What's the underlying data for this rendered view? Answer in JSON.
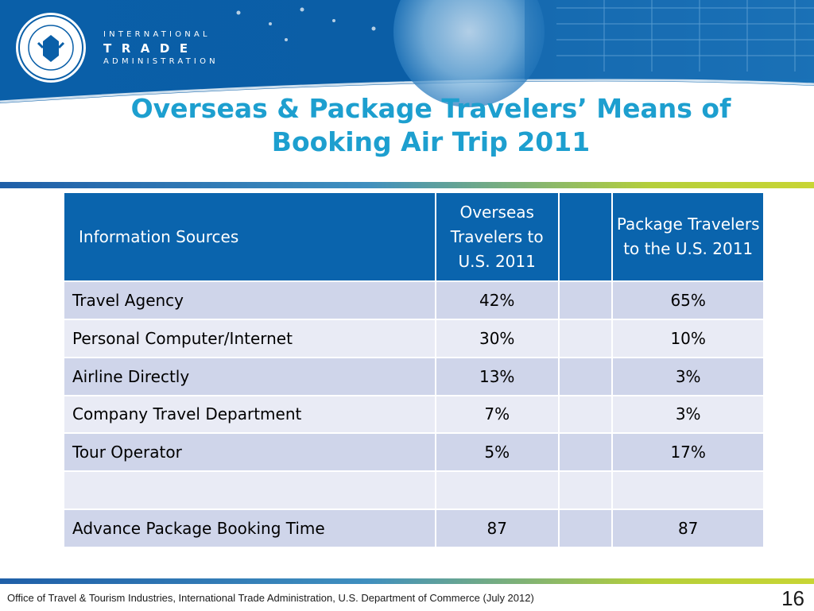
{
  "header": {
    "org_line1": "INTERNATIONAL",
    "org_line2": "TRADE",
    "org_line3": "ADMINISTRATION",
    "seal_icon": "department-of-commerce-seal-icon",
    "colors": {
      "banner_blue": "#0a5fa8",
      "title": "#1d9fcf"
    }
  },
  "slide": {
    "title_line1": "Overseas & Package Travelers’ Means of",
    "title_line2": "Booking Air Trip 2011"
  },
  "table": {
    "headers": [
      "Information  Sources",
      "Overseas Travelers to U.S. 2011",
      "",
      "Package Travelers to the U.S. 2011"
    ],
    "rows": [
      [
        "Travel Agency",
        "42%",
        "",
        "65%"
      ],
      [
        "Personal Computer/Internet",
        "30%",
        "",
        "10%"
      ],
      [
        "Airline Directly",
        "13%",
        "",
        "3%"
      ],
      [
        "Company Travel Department",
        "7%",
        "",
        "3%"
      ],
      [
        "Tour Operator",
        "5%",
        "",
        "17%"
      ],
      [
        "",
        "",
        "",
        ""
      ],
      [
        "Advance Package Booking Time",
        "87",
        "",
        "87"
      ]
    ],
    "colors": {
      "header_bg": "#0a64ad",
      "row_odd": "#cfd5ea",
      "row_even": "#e9ebf5"
    }
  },
  "footer": {
    "source": "Office of Travel & Tourism Industries, International Trade Administration, U.S. Department of Commerce (July 2012)",
    "page_number": "16"
  }
}
